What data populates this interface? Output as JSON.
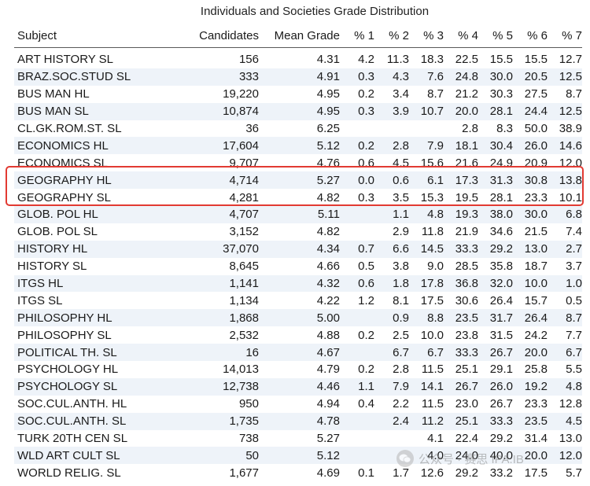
{
  "table": {
    "caption": "Individuals and Societies Grade Distribution",
    "columns": [
      "Subject",
      "Candidates",
      "Mean Grade",
      "% 1",
      "% 2",
      "% 3",
      "% 4",
      "% 5",
      "% 6",
      "% 7"
    ],
    "rows": [
      [
        "ART HISTORY SL",
        "156",
        "4.31",
        "4.2",
        "11.3",
        "18.3",
        "22.5",
        "15.5",
        "15.5",
        "12.7"
      ],
      [
        "BRAZ.SOC.STUD SL",
        "333",
        "4.91",
        "0.3",
        "4.3",
        "7.6",
        "24.8",
        "30.0",
        "20.5",
        "12.5"
      ],
      [
        "BUS MAN HL",
        "19,220",
        "4.95",
        "0.2",
        "3.4",
        "8.7",
        "21.2",
        "30.3",
        "27.5",
        "8.7"
      ],
      [
        "BUS MAN SL",
        "10,874",
        "4.95",
        "0.3",
        "3.9",
        "10.7",
        "20.0",
        "28.1",
        "24.4",
        "12.5"
      ],
      [
        "CL.GK.ROM.ST. SL",
        "36",
        "6.25",
        "",
        "",
        "",
        "2.8",
        "8.3",
        "50.0",
        "38.9"
      ],
      [
        "ECONOMICS HL",
        "17,604",
        "5.12",
        "0.2",
        "2.8",
        "7.9",
        "18.1",
        "30.4",
        "26.0",
        "14.6"
      ],
      [
        "ECONOMICS SL",
        "9,707",
        "4.76",
        "0.6",
        "4.5",
        "15.6",
        "21.6",
        "24.9",
        "20.9",
        "12.0"
      ],
      [
        "GEOGRAPHY HL",
        "4,714",
        "5.27",
        "0.0",
        "0.6",
        "6.1",
        "17.3",
        "31.3",
        "30.8",
        "13.8"
      ],
      [
        "GEOGRAPHY SL",
        "4,281",
        "4.82",
        "0.3",
        "3.5",
        "15.3",
        "19.5",
        "28.1",
        "23.3",
        "10.1"
      ],
      [
        "GLOB. POL HL",
        "4,707",
        "5.11",
        "",
        "1.1",
        "4.8",
        "19.3",
        "38.0",
        "30.0",
        "6.8"
      ],
      [
        "GLOB. POL SL",
        "3,152",
        "4.82",
        "",
        "2.9",
        "11.8",
        "21.9",
        "34.6",
        "21.5",
        "7.4"
      ],
      [
        "HISTORY HL",
        "37,070",
        "4.34",
        "0.7",
        "6.6",
        "14.5",
        "33.3",
        "29.2",
        "13.0",
        "2.7"
      ],
      [
        "HISTORY SL",
        "8,645",
        "4.66",
        "0.5",
        "3.8",
        "9.0",
        "28.5",
        "35.8",
        "18.7",
        "3.7"
      ],
      [
        "ITGS HL",
        "1,141",
        "4.32",
        "0.6",
        "1.8",
        "17.8",
        "36.8",
        "32.0",
        "10.0",
        "1.0"
      ],
      [
        "ITGS SL",
        "1,134",
        "4.22",
        "1.2",
        "8.1",
        "17.5",
        "30.6",
        "26.4",
        "15.7",
        "0.5"
      ],
      [
        "PHILOSOPHY HL",
        "1,868",
        "5.00",
        "",
        "0.9",
        "8.8",
        "23.5",
        "31.7",
        "26.4",
        "8.7"
      ],
      [
        "PHILOSOPHY SL",
        "2,532",
        "4.88",
        "0.2",
        "2.5",
        "10.0",
        "23.8",
        "31.5",
        "24.2",
        "7.7"
      ],
      [
        "POLITICAL TH. SL",
        "16",
        "4.67",
        "",
        "6.7",
        "6.7",
        "33.3",
        "26.7",
        "20.0",
        "6.7"
      ],
      [
        "PSYCHOLOGY HL",
        "14,013",
        "4.79",
        "0.2",
        "2.8",
        "11.5",
        "25.1",
        "29.1",
        "25.8",
        "5.5"
      ],
      [
        "PSYCHOLOGY SL",
        "12,738",
        "4.46",
        "1.1",
        "7.9",
        "14.1",
        "26.7",
        "26.0",
        "19.2",
        "4.8"
      ],
      [
        "SOC.CUL.ANTH. HL",
        "950",
        "4.94",
        "0.4",
        "2.2",
        "11.5",
        "23.0",
        "26.7",
        "23.3",
        "12.8"
      ],
      [
        "SOC.CUL.ANTH. SL",
        "1,735",
        "4.78",
        "",
        "2.4",
        "11.2",
        "25.1",
        "33.3",
        "23.5",
        "4.5"
      ],
      [
        "TURK 20TH CEN SL",
        "738",
        "5.27",
        "",
        "",
        "4.1",
        "22.4",
        "29.2",
        "31.4",
        "13.0"
      ],
      [
        "WLD ART CULT SL",
        "50",
        "5.12",
        "",
        "",
        "4.0",
        "24.0",
        "40.0",
        "20.0",
        "12.0"
      ],
      [
        "WORLD RELIG. SL",
        "1,677",
        "4.69",
        "0.1",
        "1.7",
        "12.6",
        "29.2",
        "33.2",
        "17.5",
        "5.7"
      ]
    ]
  },
  "highlight": {
    "rows": [
      "GEOGRAPHY HL",
      "GEOGRAPHY SL"
    ],
    "color": "#e23a32"
  },
  "watermark": {
    "icon": "wechat-icon",
    "text": "公众号 · 赛思 IPA.IB"
  },
  "colors": {
    "row_alt": "#eef3f9",
    "rule": "#5a5a5a",
    "highlight_border": "#e23a32"
  }
}
